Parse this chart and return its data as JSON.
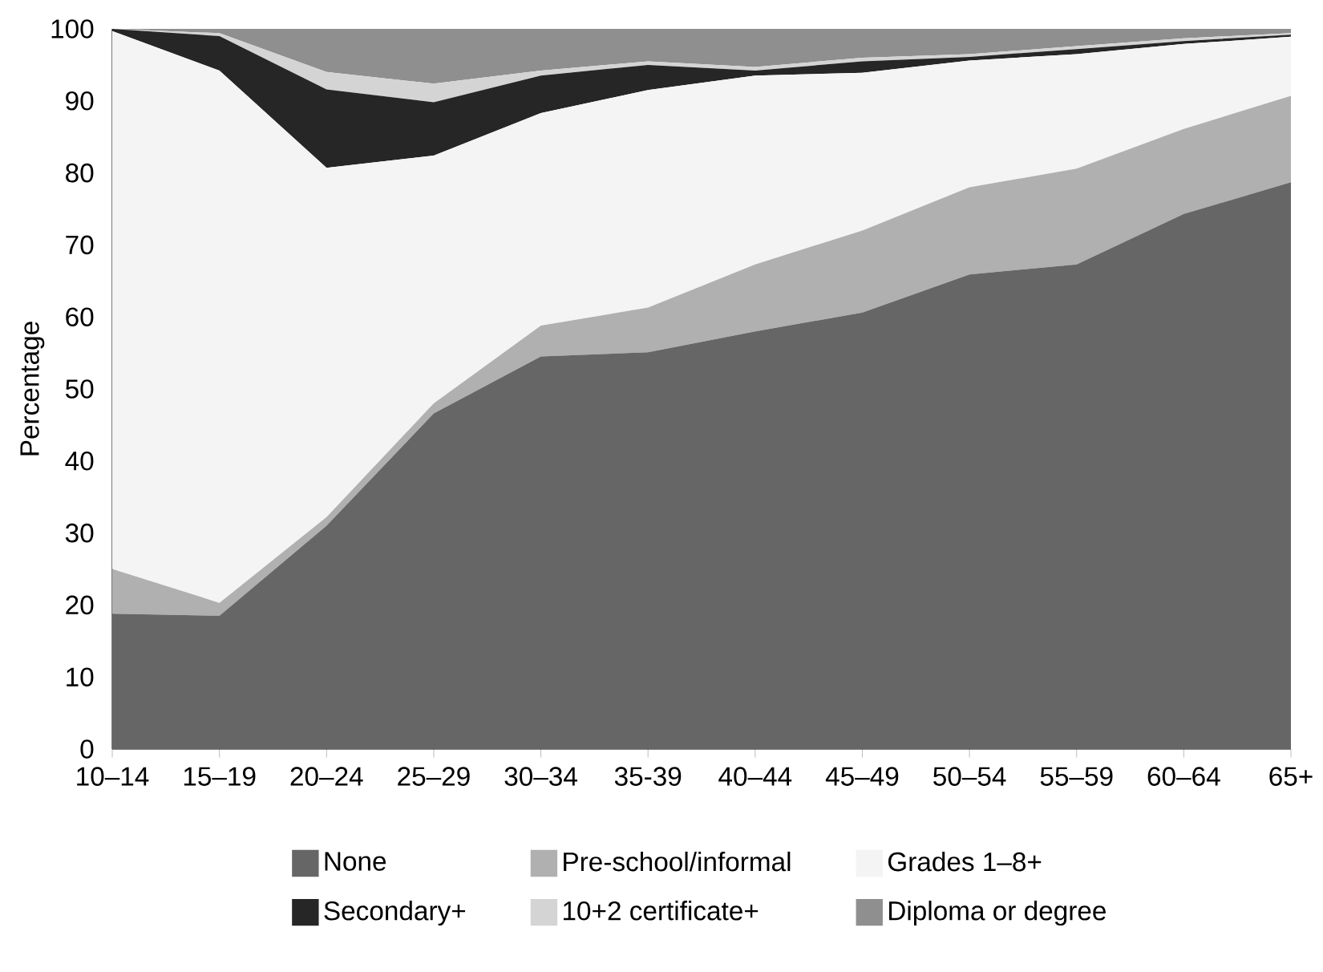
{
  "chart_data": {
    "type": "area",
    "stacked": true,
    "ylabel": "Percentage",
    "categories": [
      "10–14",
      "15–19",
      "20–24",
      "25–29",
      "30–34",
      "35-39",
      "40–44",
      "45–49",
      "50–54",
      "55–59",
      "60–64",
      "65+"
    ],
    "ylim": [
      0,
      100
    ],
    "yticks": [
      0,
      10,
      20,
      30,
      40,
      50,
      60,
      70,
      80,
      90,
      100
    ],
    "grid": false,
    "legend": "bottom",
    "series": [
      {
        "name": "None",
        "color": "#666666",
        "values": [
          18.8,
          18.5,
          31,
          46.6,
          54.5,
          55.1,
          58,
          60.6,
          65.9,
          67.3,
          74.3,
          78.7
        ]
      },
      {
        "name": "Pre-school/informal",
        "color": "#b0b0b0",
        "values": [
          6.2,
          1.8,
          1.2,
          1.4,
          4.3,
          6.2,
          9.3,
          11.4,
          12.1,
          13.3,
          11.8,
          12
        ]
      },
      {
        "name": "Grades 1–8+",
        "color": "#f4f4f4",
        "values": [
          74.7,
          73.9,
          48.5,
          34.4,
          29.5,
          30.2,
          26.2,
          21.9,
          17.6,
          15.9,
          11.8,
          8.2
        ]
      },
      {
        "name": "Secondary+",
        "color": "#262626",
        "values": [
          0.3,
          4.8,
          10.9,
          7.4,
          5.2,
          3.5,
          0.7,
          1.6,
          0.5,
          0.7,
          0.4,
          0.3
        ]
      },
      {
        "name": "10+2 certificate+",
        "color": "#d4d4d4",
        "values": [
          0,
          0.4,
          2.4,
          2.6,
          0.7,
          0.5,
          0.5,
          0.5,
          0.4,
          0.4,
          0.4,
          0.2
        ]
      },
      {
        "name": "Diploma or degree",
        "color": "#8f8f8f",
        "values": [
          0,
          0.6,
          6,
          7.6,
          5.8,
          4.5,
          5.3,
          4,
          3.5,
          2.4,
          1.3,
          0.6
        ]
      }
    ]
  }
}
